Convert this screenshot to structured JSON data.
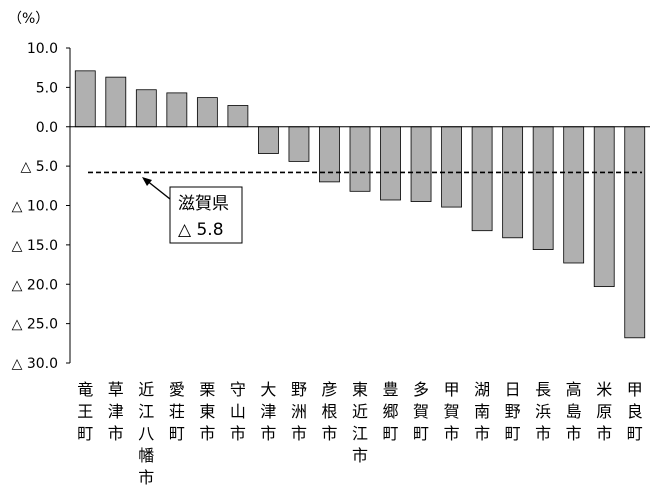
{
  "chart_data": {
    "type": "bar",
    "unit_label": "（%）",
    "categories": [
      "竜王町",
      "草津市",
      "近江八幡市",
      "愛荘町",
      "栗東市",
      "守山市",
      "大津市",
      "野洲市",
      "彦根市",
      "東近江市",
      "豊郷町",
      "多賀町",
      "甲賀市",
      "湖南市",
      "日野町",
      "長浜市",
      "高島市",
      "米原市",
      "甲良町"
    ],
    "values": [
      7.1,
      6.3,
      4.7,
      4.3,
      3.7,
      2.7,
      -3.4,
      -4.4,
      -7.0,
      -8.2,
      -9.3,
      -9.5,
      -10.2,
      -13.2,
      -14.1,
      -15.6,
      -17.3,
      -20.3,
      -26.8
    ],
    "ylim": [
      -30,
      10
    ],
    "yticks": [
      10,
      5,
      0,
      -5,
      -10,
      -15,
      -20,
      -25,
      -30
    ],
    "ytick_labels": [
      "10.0",
      "5.0",
      "0.0",
      "△ 5.0",
      "△ 10.0",
      "△ 15.0",
      "△ 20.0",
      "△ 25.0",
      "△ 30.0"
    ],
    "bar_color": "#b0b0b0",
    "reference_line": {
      "value": -5.8,
      "style": "dashed"
    },
    "annotation": {
      "line1": "滋賀県",
      "line2": "△ 5.8"
    },
    "xlabel": "",
    "ylabel": ""
  }
}
